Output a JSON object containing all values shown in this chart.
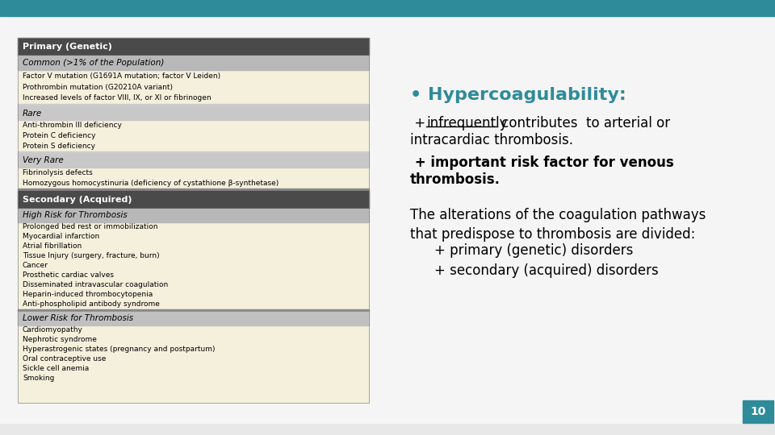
{
  "bg_color": "#e8e8e8",
  "header_color": "#2e8b9a",
  "table_bg": "#f5f0dc",
  "teal_color": "#2e8b9a",
  "title_text": "• Hypercoagulability:",
  "para2": "The alterations of the coagulation pathways\nthat predispose to thrombosis are divided:",
  "bullet1": "    + primary (genetic) disorders",
  "bullet2": "    + secondary (acquired) disorders",
  "page_num": "10",
  "primary_header": "Primary (Genetic)",
  "common_header": "Common (>1% of the Population)",
  "common_items": [
    "Factor V mutation (G1691A mutation; factor V Leiden)",
    "Prothrombin mutation (G20210A variant)",
    "Increased levels of factor VIII, IX, or XI or fibrinogen"
  ],
  "rare_header": "Rare",
  "rare_items": [
    "Anti-thrombin III deficiency",
    "Protein C deficiency",
    "Protein S deficiency"
  ],
  "very_rare_header": "Very Rare",
  "very_rare_items": [
    "Fibrinolysis defects",
    "Homozygous homocystinuria (deficiency of cystathione β-synthetase)"
  ],
  "secondary_header": "Secondary (Acquired)",
  "high_risk_header": "High Risk for Thrombosis",
  "high_risk_items": [
    "Prolonged bed rest or immobilization",
    "Myocardial infarction",
    "Atrial fibrillation",
    "Tissue Injury (surgery, fracture, burn)",
    "Cancer",
    "Prosthetic cardiac valves",
    "Disseminated intravascular coagulation",
    "Heparin-induced thrombocytopenia",
    "Anti-phospholipid antibody syndrome"
  ],
  "low_risk_header": "Lower Risk for Thrombosis",
  "low_risk_items": [
    "Cardiomyopathy",
    "Nephrotic syndrome",
    "Hyperastrogenic states (pregnancy and postpartum)",
    "Oral contraceptive use",
    "Sickle cell anemia",
    "Smoking"
  ]
}
